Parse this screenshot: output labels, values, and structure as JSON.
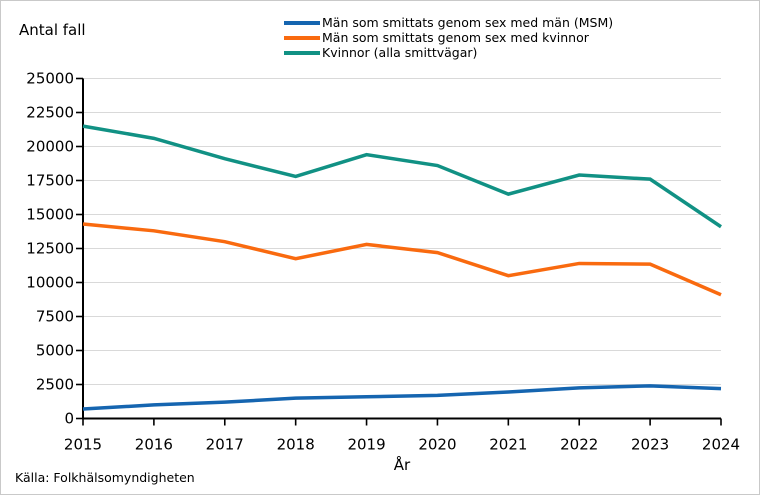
{
  "figure": {
    "y_axis_title": "Antal fall",
    "x_axis_title": "År",
    "source": "Källa: Folkhälsomyndigheten"
  },
  "chart_data": {
    "type": "line",
    "title": "",
    "ylabel": "Antal fall",
    "xlabel": "År",
    "source": "Källa: Folkhälsomyndigheten",
    "categories": [
      "2015",
      "2016",
      "2017",
      "2018",
      "2019",
      "2020",
      "2021",
      "2022",
      "2023",
      "2024"
    ],
    "ylim": [
      0,
      25000
    ],
    "y_tick_step": 2500,
    "grid": "horizontal-only",
    "legend_position": "top-center",
    "grid_color": "#d9d9d9",
    "axis_color": "#000000",
    "series": [
      {
        "name": "Män som smittats genom sex med män (MSM)",
        "color": "#1565b0",
        "values": [
          700,
          1000,
          1200,
          1500,
          1600,
          1700,
          1950,
          2250,
          2400,
          2200
        ]
      },
      {
        "name": "Män som smittats genom sex med kvinnor",
        "color": "#f96a0f",
        "values": [
          14300,
          13800,
          13000,
          11750,
          12800,
          12200,
          10500,
          11400,
          11350,
          9100
        ]
      },
      {
        "name": "Kvinnor (alla smittvägar)",
        "color": "#119184",
        "values": [
          21500,
          20600,
          19100,
          17800,
          19400,
          18600,
          16500,
          17900,
          17600,
          14100
        ]
      }
    ]
  }
}
